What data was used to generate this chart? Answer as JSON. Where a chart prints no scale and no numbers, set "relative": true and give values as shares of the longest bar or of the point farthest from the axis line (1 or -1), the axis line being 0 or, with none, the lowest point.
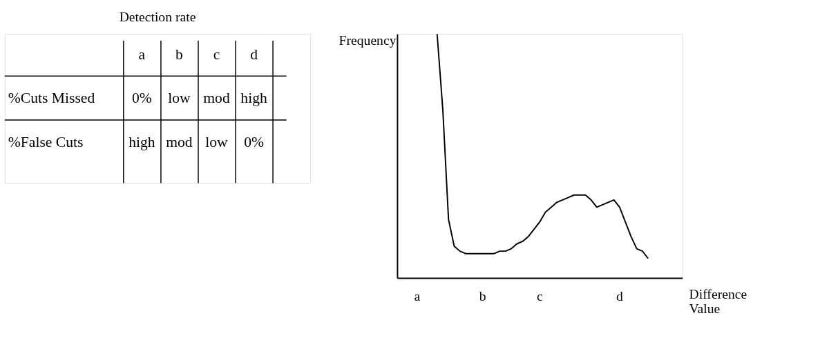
{
  "chart_data": [
    {
      "type": "other",
      "title": "Detection rate",
      "categories": [
        "a",
        "b",
        "c",
        "d"
      ],
      "y_categories": [
        "%Cuts Missed",
        "%False Cuts"
      ],
      "cell_labels": [
        [
          "0%",
          "low",
          "mod",
          "high"
        ],
        [
          "high",
          "mod",
          "low",
          "0%"
        ]
      ]
    },
    {
      "type": "line",
      "relative": true,
      "ylabel": "Frequency",
      "xlabel": "Difference Value",
      "color": "#000000",
      "marker": "none",
      "grid": false,
      "categories": [
        null,
        null,
        null,
        null,
        null,
        null,
        null,
        null,
        null,
        null,
        null,
        null,
        null,
        null,
        null,
        null,
        null,
        null,
        null,
        null,
        null,
        null,
        null,
        null,
        null,
        null,
        null,
        null,
        null,
        null,
        null,
        null,
        null,
        null,
        null,
        null,
        null,
        null,
        null,
        null,
        null,
        null,
        null,
        null,
        null,
        null,
        null,
        null,
        null,
        null,
        null
      ],
      "values": [
        null,
        null,
        null,
        null,
        null,
        null,
        null,
        1.0,
        0.69,
        0.24,
        0.13,
        0.11,
        0.1,
        0.1,
        0.1,
        0.1,
        0.1,
        0.1,
        0.11,
        0.11,
        0.12,
        0.14,
        0.15,
        0.17,
        0.2,
        0.23,
        0.27,
        0.29,
        0.31,
        0.32,
        0.33,
        0.34,
        0.34,
        0.34,
        0.32,
        0.29,
        0.3,
        0.31,
        0.32,
        0.29,
        0.23,
        0.17,
        0.12,
        0.11,
        0.08,
        null,
        null,
        null,
        null,
        null,
        null
      ],
      "annotations": [
        "a",
        "b",
        "c",
        "d"
      ]
    }
  ]
}
